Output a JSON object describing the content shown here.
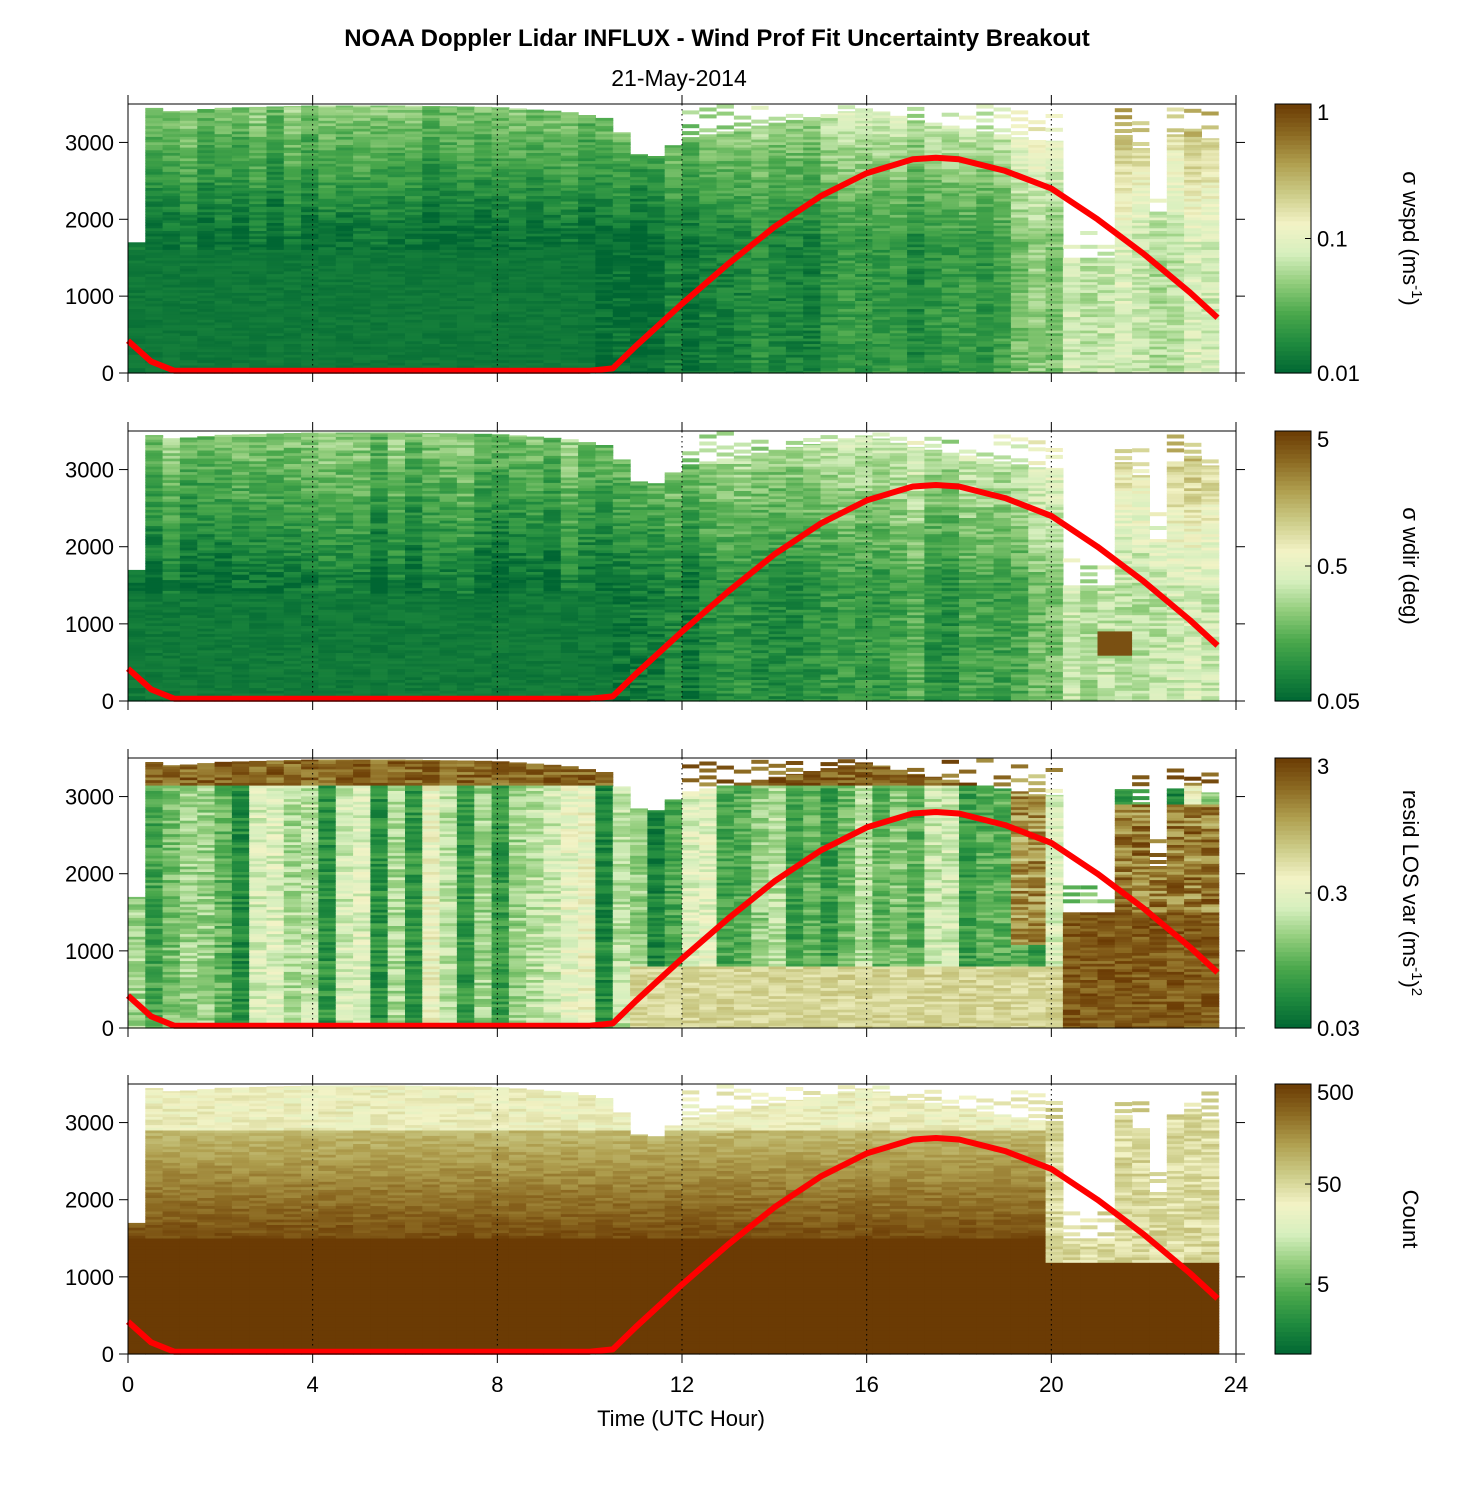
{
  "figure": {
    "title": "NOAA Doppler Lidar INFLUX - Wind Prof Fit Uncertainty Breakout",
    "subtitle": "21-May-2014",
    "xlabel": "Time (UTC Hour)"
  },
  "colors": {
    "line": "#ff0000",
    "colormap": [
      "#006633",
      "#1f8a3e",
      "#4aa84c",
      "#90cc7a",
      "#d6efbe",
      "#f3f3c6",
      "#cccc88",
      "#b0a050",
      "#8c6a22",
      "#6b3b04"
    ]
  },
  "chart_data": [
    {
      "type": "heatmap",
      "name": "wspd",
      "x_range": [
        0,
        24
      ],
      "y_range": [
        0,
        3500
      ],
      "x_ticks": [
        0,
        4,
        8,
        12,
        16,
        20,
        24
      ],
      "y_ticks": [
        0,
        1000,
        2000,
        3000
      ],
      "y_tick_labels": [
        "0",
        "1000",
        "2000",
        "3000"
      ],
      "colorbar": {
        "label": "σ wspd (ms",
        "label_sup": "-1",
        "label_end": ")",
        "scale": "log",
        "range": [
          0.01,
          1
        ],
        "ticks": [
          0.01,
          0.1,
          1
        ],
        "tick_labels": [
          "0.01",
          "0.1",
          "1"
        ]
      },
      "grid_x": [
        4,
        8,
        12,
        16,
        20,
        24
      ],
      "grid": "dotted vertical"
    },
    {
      "type": "heatmap",
      "name": "wdir",
      "x_range": [
        0,
        24
      ],
      "y_range": [
        0,
        3500
      ],
      "x_ticks": [
        0,
        4,
        8,
        12,
        16,
        20,
        24
      ],
      "y_ticks": [
        0,
        1000,
        2000,
        3000
      ],
      "y_tick_labels": [
        "0",
        "1000",
        "2000",
        "3000"
      ],
      "colorbar": {
        "label": "σ wdir (deg)",
        "label_sup": "",
        "label_end": "",
        "scale": "log",
        "range": [
          0.05,
          5
        ],
        "ticks": [
          0.05,
          0.5,
          5
        ],
        "tick_labels": [
          "0.05",
          "0.5",
          "5"
        ]
      },
      "grid_x": [
        4,
        8,
        12,
        16,
        20,
        24
      ],
      "grid": "dotted vertical"
    },
    {
      "type": "heatmap",
      "name": "resid",
      "x_range": [
        0,
        24
      ],
      "y_range": [
        0,
        3500
      ],
      "x_ticks": [
        0,
        4,
        8,
        12,
        16,
        20,
        24
      ],
      "y_ticks": [
        0,
        1000,
        2000,
        3000
      ],
      "y_tick_labels": [
        "0",
        "1000",
        "2000",
        "3000"
      ],
      "colorbar": {
        "label": "resid LOS var (ms",
        "label_sup": "-1",
        "label_end": ")",
        "label_sup2": "2",
        "scale": "log",
        "range": [
          0.03,
          3
        ],
        "ticks": [
          0.03,
          0.3,
          3
        ],
        "tick_labels": [
          "0.03",
          "0.3",
          "3"
        ]
      },
      "grid_x": [
        4,
        8,
        12,
        16,
        20,
        24
      ],
      "grid": "dotted vertical"
    },
    {
      "type": "heatmap",
      "name": "count",
      "x_range": [
        0,
        24
      ],
      "y_range": [
        0,
        3500
      ],
      "x_ticks": [
        0,
        4,
        8,
        12,
        16,
        20,
        24
      ],
      "x_tick_labels": [
        "0",
        "4",
        "8",
        "12",
        "16",
        "20",
        "24"
      ],
      "y_ticks": [
        0,
        1000,
        2000,
        3000
      ],
      "y_tick_labels": [
        "0",
        "1000",
        "2000",
        "3000"
      ],
      "colorbar": {
        "label": "Count",
        "label_sup": "",
        "label_end": "",
        "scale": "log",
        "range": [
          1,
          500
        ],
        "ticks": [
          5,
          50,
          500
        ],
        "tick_labels": [
          "5",
          "50",
          "500"
        ]
      },
      "grid_x": [
        4,
        8,
        12,
        16,
        20,
        24
      ],
      "grid": "dotted vertical"
    }
  ],
  "boundary_layer_line": {
    "x": [
      0,
      0.5,
      1,
      2,
      4,
      6,
      8,
      10,
      10.5,
      11,
      12,
      13,
      14,
      15,
      16,
      17,
      17.5,
      18,
      19,
      20,
      21,
      22,
      23,
      23.6
    ],
    "y": [
      420,
      150,
      30,
      30,
      30,
      30,
      30,
      30,
      60,
      350,
      900,
      1420,
      1900,
      2300,
      2600,
      2780,
      2800,
      2780,
      2630,
      2400,
      2000,
      1550,
      1050,
      720
    ]
  },
  "data_top": {
    "x": [
      0,
      0.3,
      0.55,
      1,
      2,
      4,
      6,
      8,
      9.5,
      10.5,
      11,
      11.5,
      12,
      13,
      14,
      15,
      16,
      17,
      18,
      19,
      20,
      21,
      22,
      23,
      23.6
    ],
    "y": [
      1700,
      1700,
      3450,
      3400,
      3450,
      3480,
      3480,
      3460,
      3400,
      3300,
      2850,
      2820,
      3050,
      3150,
      3250,
      3350,
      3450,
      3300,
      3200,
      3100,
      3000,
      3350,
      2900,
      3200,
      3000
    ]
  },
  "gap_after_20": [
    {
      "x0": 20.2,
      "x1": 21.2,
      "top": 1500
    },
    {
      "x0": 22.0,
      "x1": 22.4,
      "top": 2100
    }
  ]
}
